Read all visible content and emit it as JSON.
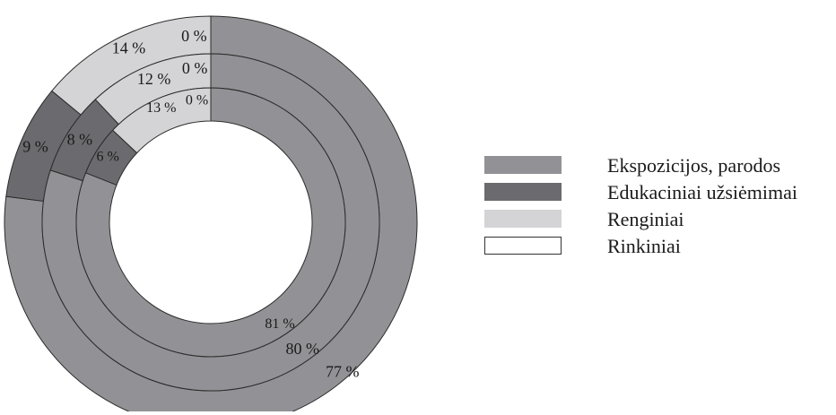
{
  "chart_data": {
    "type": "donut",
    "series": [
      {
        "name": "Ekspozicijos, parodos",
        "color": "#929296"
      },
      {
        "name": "Edukaciniai užsiėmimai",
        "color": "#6b6b6f"
      },
      {
        "name": "Renginiai",
        "color": "#d4d4d6"
      },
      {
        "name": "Rinkiniai",
        "color": "#ffffff"
      }
    ],
    "rings": [
      {
        "values": [
          77,
          9,
          14,
          0
        ],
        "labels": [
          "77 %",
          "9 %",
          "14 %",
          "0 %"
        ]
      },
      {
        "values": [
          80,
          8,
          12,
          0
        ],
        "labels": [
          "80 %",
          "8 %",
          "12 %",
          "0 %"
        ]
      },
      {
        "values": [
          81,
          6,
          13,
          0
        ],
        "labels": [
          "81 %",
          "6 %",
          "13 %",
          "0 %"
        ]
      }
    ],
    "legend_position": "right"
  }
}
